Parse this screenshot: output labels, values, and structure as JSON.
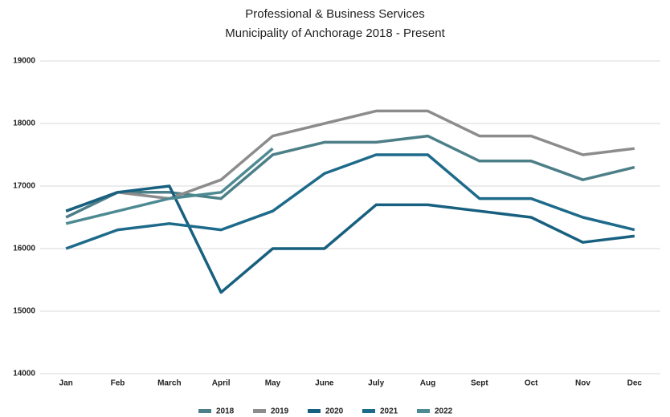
{
  "chart_data": {
    "type": "line",
    "title": "Professional & Business Services",
    "subtitle": "Municipality of Anchorage 2018 - Present",
    "categories": [
      "Jan",
      "Feb",
      "March",
      "April",
      "May",
      "June",
      "July",
      "Aug",
      "Sept",
      "Oct",
      "Nov",
      "Dec"
    ],
    "series": [
      {
        "name": "2018",
        "color": "#4d7f88",
        "values": [
          16500,
          16900,
          16900,
          16800,
          17500,
          17700,
          17700,
          17800,
          17400,
          17400,
          17100,
          17300
        ]
      },
      {
        "name": "2019",
        "color": "#8c8c8c",
        "values": [
          16600,
          16900,
          16800,
          17100,
          17800,
          18000,
          18200,
          18200,
          17800,
          17800,
          17500,
          17600
        ]
      },
      {
        "name": "2020",
        "color": "#17607f",
        "values": [
          16600,
          16900,
          17000,
          15300,
          16000,
          16000,
          16700,
          16700,
          16600,
          16500,
          16100,
          16200
        ]
      },
      {
        "name": "2021",
        "color": "#1d6a8a",
        "values": [
          16000,
          16300,
          16400,
          16300,
          16600,
          17200,
          17500,
          17500,
          16800,
          16800,
          16500,
          16300
        ]
      },
      {
        "name": "2022",
        "color": "#4e8a92",
        "values": [
          16400,
          16600,
          16800,
          16900,
          17600,
          null,
          null,
          null,
          null,
          null,
          null,
          null
        ]
      }
    ],
    "ylim": [
      14000,
      19000
    ],
    "yticks": [
      14000,
      15000,
      16000,
      17000,
      18000,
      19000
    ],
    "grid": true,
    "legend": "bottom"
  }
}
